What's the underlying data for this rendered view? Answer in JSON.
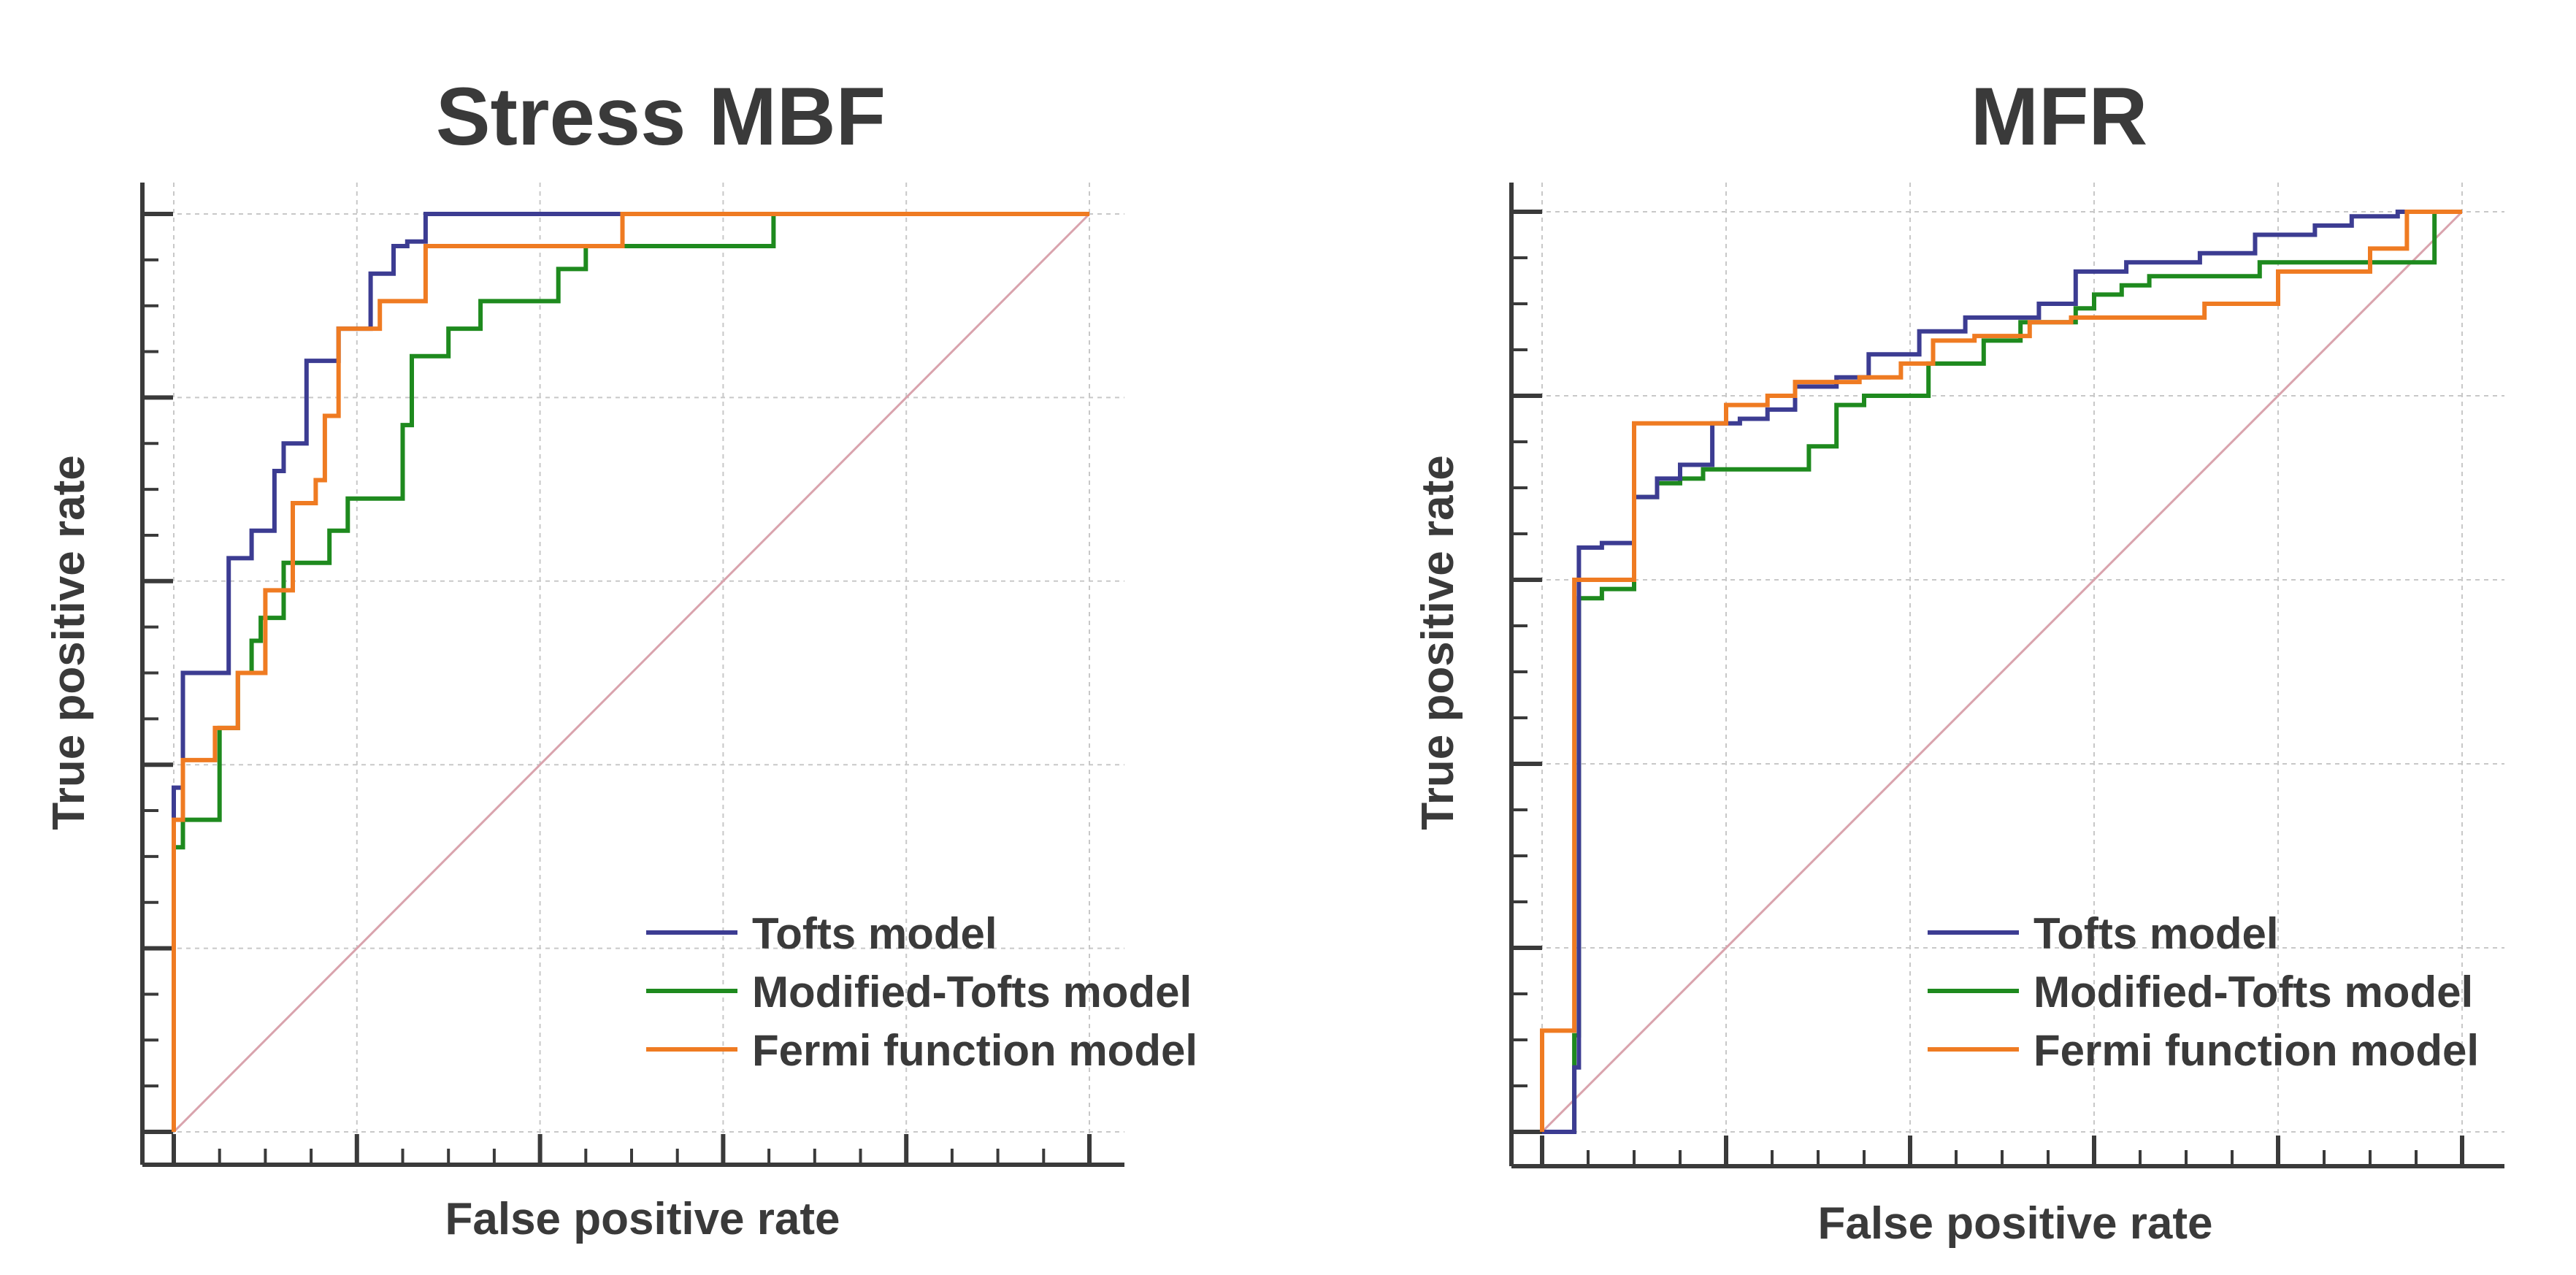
{
  "chart_data": [
    {
      "type": "line",
      "title": "Stress MBF",
      "xlabel": "False positive rate",
      "ylabel": "True positive rate",
      "xlim": [
        0,
        1
      ],
      "ylim": [
        0,
        1
      ],
      "grid": true,
      "legend": "bottom-right",
      "reference_line": {
        "x": [
          0,
          1
        ],
        "y": [
          0,
          1
        ],
        "color": "#d9a3ad"
      },
      "series": [
        {
          "name": "Tofts model",
          "color": "#3c3c92",
          "x": [
            0,
            0,
            0.01,
            0.01,
            0.06,
            0.06,
            0.085,
            0.085,
            0.11,
            0.11,
            0.12,
            0.12,
            0.145,
            0.145,
            0.18,
            0.18,
            0.215,
            0.215,
            0.24,
            0.24,
            0.255,
            0.255,
            0.275,
            0.275,
            0.29,
            0.29,
            0.48,
            0.48,
            1.0
          ],
          "y": [
            0,
            0.375,
            0.375,
            0.5,
            0.5,
            0.625,
            0.625,
            0.655,
            0.655,
            0.72,
            0.72,
            0.75,
            0.75,
            0.84,
            0.84,
            0.875,
            0.875,
            0.935,
            0.935,
            0.965,
            0.965,
            0.97,
            0.97,
            1.0,
            1.0,
            1.0,
            1.0,
            1.0,
            1.0
          ]
        },
        {
          "name": "Modified-Tofts model",
          "color": "#1e8a1e",
          "x": [
            0,
            0,
            0.01,
            0.01,
            0.015,
            0.015,
            0.05,
            0.05,
            0.07,
            0.07,
            0.085,
            0.085,
            0.095,
            0.095,
            0.12,
            0.12,
            0.17,
            0.17,
            0.19,
            0.19,
            0.25,
            0.25,
            0.26,
            0.26,
            0.3,
            0.3,
            0.335,
            0.335,
            0.42,
            0.42,
            0.45,
            0.45,
            0.655,
            0.655,
            1.0
          ],
          "y": [
            0,
            0.31,
            0.31,
            0.34,
            0.34,
            0.34,
            0.34,
            0.44,
            0.44,
            0.5,
            0.5,
            0.535,
            0.535,
            0.56,
            0.56,
            0.62,
            0.62,
            0.655,
            0.655,
            0.69,
            0.69,
            0.77,
            0.77,
            0.845,
            0.845,
            0.875,
            0.875,
            0.905,
            0.905,
            0.94,
            0.94,
            0.965,
            0.965,
            1.0,
            1.0
          ]
        },
        {
          "name": "Fermi function model",
          "color": "#ef7b22",
          "x": [
            0,
            0,
            0.01,
            0.01,
            0.045,
            0.045,
            0.07,
            0.07,
            0.075,
            0.075,
            0.1,
            0.1,
            0.11,
            0.11,
            0.13,
            0.13,
            0.155,
            0.155,
            0.165,
            0.165,
            0.18,
            0.18,
            0.225,
            0.225,
            0.275,
            0.275,
            0.29,
            0.29,
            0.49,
            0.49,
            1.0
          ],
          "y": [
            0,
            0.34,
            0.34,
            0.405,
            0.405,
            0.44,
            0.44,
            0.5,
            0.5,
            0.5,
            0.5,
            0.59,
            0.59,
            0.59,
            0.59,
            0.685,
            0.685,
            0.71,
            0.71,
            0.78,
            0.78,
            0.875,
            0.875,
            0.905,
            0.905,
            0.965,
            0.965,
            0.965,
            0.965,
            1.0,
            1.0
          ]
        }
      ]
    },
    {
      "type": "line",
      "title": "MFR",
      "xlabel": "False positive rate",
      "ylabel": "True positive rate",
      "xlim": [
        0,
        1
      ],
      "ylim": [
        0,
        1
      ],
      "grid": true,
      "legend": "bottom-right",
      "reference_line": {
        "x": [
          0,
          1
        ],
        "y": [
          0,
          1
        ],
        "color": "#d9a3ad"
      },
      "series": [
        {
          "name": "Tofts model",
          "color": "#3c3c92",
          "x": [
            0,
            0,
            0.035,
            0.035,
            0.04,
            0.04,
            0.065,
            0.065,
            0.1,
            0.1,
            0.125,
            0.125,
            0.15,
            0.15,
            0.185,
            0.185,
            0.215,
            0.215,
            0.245,
            0.245,
            0.275,
            0.275,
            0.32,
            0.32,
            0.355,
            0.355,
            0.41,
            0.41,
            0.46,
            0.46,
            0.54,
            0.54,
            0.58,
            0.58,
            0.635,
            0.635,
            0.715,
            0.715,
            0.775,
            0.775,
            0.84,
            0.84,
            0.88,
            0.88,
            0.93,
            0.93,
            0.955,
            0.955,
            1.0
          ],
          "y": [
            0,
            0,
            0,
            0.07,
            0.07,
            0.635,
            0.635,
            0.64,
            0.64,
            0.69,
            0.69,
            0.71,
            0.71,
            0.725,
            0.725,
            0.77,
            0.77,
            0.775,
            0.775,
            0.785,
            0.785,
            0.81,
            0.81,
            0.82,
            0.82,
            0.845,
            0.845,
            0.87,
            0.87,
            0.885,
            0.885,
            0.9,
            0.9,
            0.935,
            0.935,
            0.945,
            0.945,
            0.955,
            0.955,
            0.975,
            0.975,
            0.985,
            0.985,
            0.995,
            0.995,
            1.0,
            1.0,
            1.0,
            1.0
          ]
        },
        {
          "name": "Modified-Tofts model",
          "color": "#1e8a1e",
          "x": [
            0,
            0,
            0.035,
            0.035,
            0.04,
            0.04,
            0.065,
            0.065,
            0.1,
            0.1,
            0.125,
            0.125,
            0.15,
            0.15,
            0.175,
            0.175,
            0.21,
            0.21,
            0.29,
            0.29,
            0.32,
            0.32,
            0.35,
            0.35,
            0.42,
            0.42,
            0.48,
            0.48,
            0.52,
            0.52,
            0.58,
            0.58,
            0.6,
            0.6,
            0.63,
            0.63,
            0.66,
            0.66,
            0.78,
            0.78,
            0.97,
            0.97,
            1.0
          ],
          "y": [
            0,
            0,
            0,
            0.105,
            0.105,
            0.58,
            0.58,
            0.59,
            0.59,
            0.69,
            0.69,
            0.705,
            0.705,
            0.71,
            0.71,
            0.72,
            0.72,
            0.72,
            0.72,
            0.745,
            0.745,
            0.79,
            0.79,
            0.8,
            0.8,
            0.835,
            0.835,
            0.86,
            0.86,
            0.88,
            0.88,
            0.895,
            0.895,
            0.91,
            0.91,
            0.92,
            0.92,
            0.93,
            0.93,
            0.945,
            0.945,
            1.0,
            1.0
          ]
        },
        {
          "name": "Fermi function model",
          "color": "#ef7b22",
          "x": [
            0,
            0,
            0.03,
            0.03,
            0.035,
            0.035,
            0.065,
            0.065,
            0.1,
            0.1,
            0.125,
            0.125,
            0.2,
            0.2,
            0.23,
            0.23,
            0.245,
            0.245,
            0.275,
            0.275,
            0.32,
            0.32,
            0.345,
            0.345,
            0.39,
            0.39,
            0.425,
            0.425,
            0.47,
            0.47,
            0.53,
            0.53,
            0.575,
            0.575,
            0.72,
            0.72,
            0.8,
            0.8,
            0.86,
            0.86,
            0.9,
            0.9,
            0.94,
            0.94,
            1.0
          ],
          "y": [
            0,
            0.11,
            0.11,
            0.11,
            0.11,
            0.6,
            0.6,
            0.6,
            0.6,
            0.77,
            0.77,
            0.77,
            0.77,
            0.79,
            0.79,
            0.79,
            0.79,
            0.8,
            0.8,
            0.815,
            0.815,
            0.815,
            0.815,
            0.82,
            0.82,
            0.835,
            0.835,
            0.86,
            0.86,
            0.865,
            0.865,
            0.88,
            0.88,
            0.885,
            0.885,
            0.9,
            0.9,
            0.935,
            0.935,
            0.935,
            0.935,
            0.96,
            0.96,
            1.0,
            1.0
          ]
        }
      ]
    }
  ]
}
